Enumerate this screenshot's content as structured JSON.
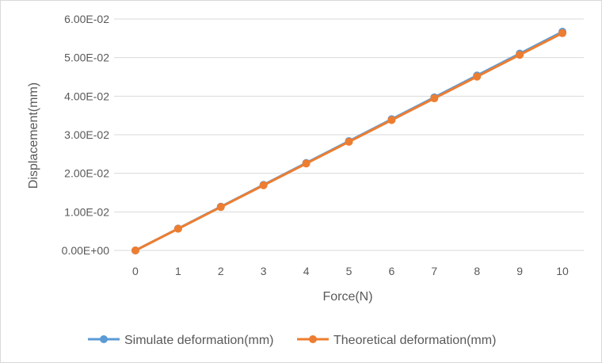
{
  "chart_data": {
    "type": "line",
    "title": "",
    "xlabel": "Force(N)",
    "ylabel": "Displacement(mm)",
    "x": [
      0,
      1,
      2,
      3,
      4,
      5,
      6,
      7,
      8,
      9,
      10
    ],
    "x_tick_labels": [
      "0",
      "1",
      "2",
      "3",
      "4",
      "5",
      "6",
      "7",
      "8",
      "9",
      "10"
    ],
    "ylim": [
      0,
      0.06
    ],
    "y_ticks": [
      0,
      0.01,
      0.02,
      0.03,
      0.04,
      0.05,
      0.06
    ],
    "y_tick_labels": [
      "0.00E+00",
      "1.00E-02",
      "2.00E-02",
      "3.00E-02",
      "4.00E-02",
      "5.00E-02",
      "6.00E-02"
    ],
    "grid": true,
    "legend_position": "bottom",
    "series": [
      {
        "name": "Simulate deformation(mm)",
        "color": "#5b9bd5",
        "values": [
          0,
          0.00567,
          0.01134,
          0.01701,
          0.02268,
          0.02835,
          0.03402,
          0.03969,
          0.04536,
          0.05103,
          0.0567
        ]
      },
      {
        "name": "Theoretical deformation(mm)",
        "color": "#ed7d31",
        "values": [
          0,
          0.00563,
          0.01127,
          0.0169,
          0.02254,
          0.02817,
          0.0338,
          0.03944,
          0.04507,
          0.05071,
          0.05634
        ]
      }
    ]
  }
}
